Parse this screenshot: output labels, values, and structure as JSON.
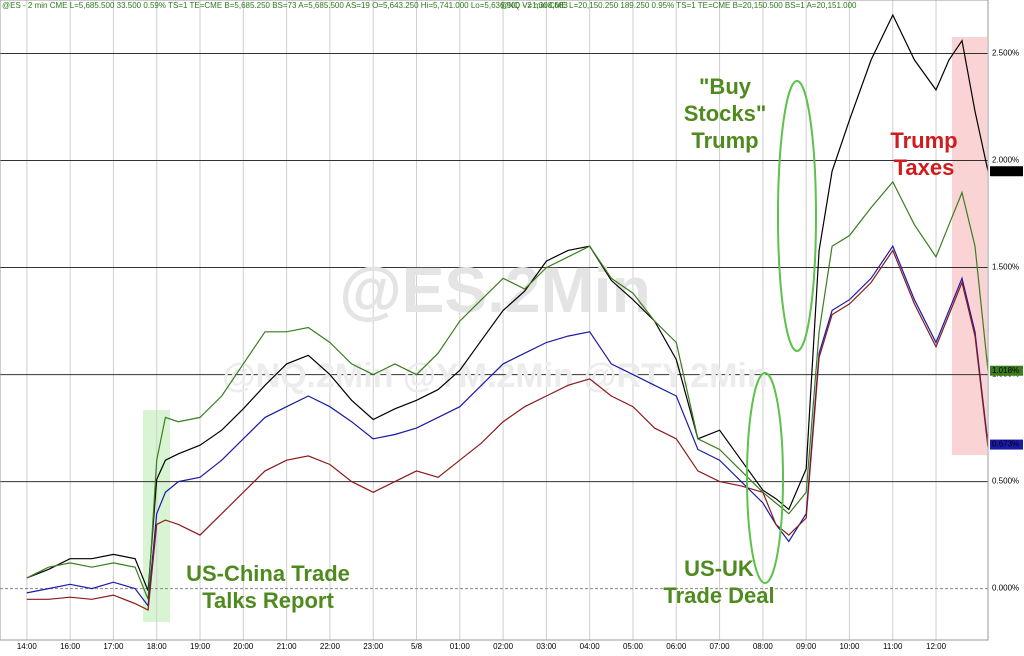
{
  "chart_data": {
    "type": "line",
    "header": [
      "@ES - 2 min CME  L=5,685.500  33.500  0.59%  TS=1  TE=CME  B=5,685.250  BS=73  A=5,685.500  AS=19  O=5,643.250  Hi=5,741.000  Lo=5,636.500  V=1,308,083",
      "@NQ - 2 min CME  L=20,150.250  189.250  0.95%  TS=1  TE=CME  B=20,150.500  BS=1  A=20,151.000"
    ],
    "watermark": "@ES.2Min",
    "watermark_sub": "@NQ.2Min @YM.2Min @RTY.2Min",
    "annotations": [
      {
        "lines": [
          "US-China Trade",
          "Talks Report"
        ],
        "color": "#4f8a1e"
      },
      {
        "lines": [
          "\"Buy",
          "Stocks\"",
          "Trump"
        ],
        "color": "#4f8a1e"
      },
      {
        "lines": [
          "US-UK",
          "Trade Deal"
        ],
        "color": "#4f8a1e"
      },
      {
        "lines": [
          "Trump",
          "Taxes"
        ],
        "color": "#d01c1c"
      }
    ],
    "x": [
      0,
      0.5,
      1,
      1.5,
      2,
      2.5,
      2.8,
      3,
      3.2,
      3.5,
      4,
      4.5,
      5,
      5.5,
      6,
      6.5,
      7,
      7.5,
      8,
      8.5,
      9,
      9.5,
      10,
      10.5,
      11,
      11.5,
      12,
      12.5,
      13,
      13.5,
      14,
      14.5,
      15,
      15.5,
      16,
      16.5,
      17,
      17.3,
      17.6,
      18,
      18.3,
      18.6,
      19,
      19.5,
      20,
      20.5,
      21,
      21.3,
      21.6,
      21.9,
      22.2
    ],
    "series": [
      {
        "name": "@ES.2Min",
        "color": "#000000",
        "last_label": "1.950%",
        "values": [
          0.05,
          0.09,
          0.14,
          0.14,
          0.16,
          0.14,
          -0.01,
          0.51,
          0.6,
          0.63,
          0.67,
          0.74,
          0.84,
          0.95,
          1.05,
          1.09,
          1.0,
          0.88,
          0.79,
          0.84,
          0.88,
          0.93,
          1.02,
          1.16,
          1.3,
          1.39,
          1.53,
          1.58,
          1.6,
          1.44,
          1.35,
          1.25,
          1.07,
          0.7,
          0.74,
          0.6,
          0.46,
          0.42,
          0.37,
          0.56,
          1.58,
          1.95,
          2.19,
          2.47,
          2.68,
          2.47,
          2.33,
          2.47,
          2.56,
          2.23,
          1.95
        ]
      },
      {
        "name": "@NQ.2Min",
        "color": "#3a7d1e",
        "last_label": "1.018%",
        "values": [
          0.05,
          0.1,
          0.12,
          0.1,
          0.12,
          0.1,
          -0.05,
          0.6,
          0.8,
          0.78,
          0.8,
          0.9,
          1.05,
          1.2,
          1.2,
          1.22,
          1.15,
          1.05,
          1.0,
          1.05,
          1.0,
          1.1,
          1.25,
          1.35,
          1.45,
          1.4,
          1.5,
          1.55,
          1.6,
          1.45,
          1.38,
          1.25,
          1.15,
          0.7,
          0.65,
          0.55,
          0.45,
          0.4,
          0.35,
          0.45,
          1.2,
          1.6,
          1.65,
          1.78,
          1.9,
          1.7,
          1.55,
          1.7,
          1.85,
          1.6,
          1.018
        ]
      },
      {
        "name": "@YM.2Min",
        "color": "#1a1aa8",
        "last_label": "0.673%",
        "values": [
          -0.02,
          0.0,
          0.02,
          0.0,
          0.03,
          0.0,
          -0.08,
          0.35,
          0.45,
          0.5,
          0.52,
          0.6,
          0.7,
          0.8,
          0.85,
          0.9,
          0.85,
          0.78,
          0.7,
          0.72,
          0.75,
          0.8,
          0.85,
          0.95,
          1.05,
          1.1,
          1.15,
          1.18,
          1.2,
          1.05,
          1.0,
          0.95,
          0.9,
          0.65,
          0.6,
          0.5,
          0.4,
          0.3,
          0.22,
          0.35,
          1.1,
          1.3,
          1.35,
          1.45,
          1.6,
          1.35,
          1.15,
          1.3,
          1.45,
          1.2,
          0.673
        ]
      },
      {
        "name": "@RTY.2Min",
        "color": "#8b1a1a",
        "values": [
          -0.05,
          -0.05,
          -0.04,
          -0.05,
          -0.03,
          -0.07,
          -0.1,
          0.3,
          0.32,
          0.3,
          0.25,
          0.35,
          0.45,
          0.55,
          0.6,
          0.62,
          0.58,
          0.5,
          0.45,
          0.5,
          0.55,
          0.52,
          0.6,
          0.68,
          0.78,
          0.85,
          0.9,
          0.95,
          0.98,
          0.9,
          0.85,
          0.75,
          0.7,
          0.55,
          0.5,
          0.48,
          0.45,
          0.3,
          0.25,
          0.33,
          1.08,
          1.28,
          1.33,
          1.43,
          1.58,
          1.33,
          1.13,
          1.28,
          1.43,
          1.18,
          0.66
        ]
      }
    ],
    "xlim": [
      -0.62,
      22.2
    ],
    "ylim": [
      -0.24,
      2.75
    ],
    "xticks": [
      {
        "value": 0,
        "label": "14:00"
      },
      {
        "value": 1,
        "label": "16:00"
      },
      {
        "value": 2,
        "label": "17:00"
      },
      {
        "value": 3,
        "label": "18:00"
      },
      {
        "value": 4,
        "label": "19:00"
      },
      {
        "value": 5,
        "label": "20:00"
      },
      {
        "value": 6,
        "label": "21:00"
      },
      {
        "value": 7,
        "label": "22:00"
      },
      {
        "value": 8,
        "label": "23:00"
      },
      {
        "value": 9,
        "label": "5/8"
      },
      {
        "value": 10,
        "label": "01:00"
      },
      {
        "value": 11,
        "label": "02:00"
      },
      {
        "value": 12,
        "label": "03:00"
      },
      {
        "value": 13,
        "label": "04:00"
      },
      {
        "value": 14,
        "label": "05:00"
      },
      {
        "value": 15,
        "label": "06:00"
      },
      {
        "value": 16,
        "label": "07:00"
      },
      {
        "value": 17,
        "label": "08:00"
      },
      {
        "value": 18,
        "label": "09:00"
      },
      {
        "value": 19,
        "label": "10:00"
      },
      {
        "value": 20,
        "label": "11:00"
      },
      {
        "value": 21,
        "label": "12:00"
      }
    ],
    "yticks": [
      {
        "value": 0,
        "label": "0.000%"
      },
      {
        "value": 0.5,
        "label": "0.500%"
      },
      {
        "value": 1,
        "label": "1.000%"
      },
      {
        "value": 1.5,
        "label": "1.500%"
      },
      {
        "value": 2,
        "label": "2.000%"
      },
      {
        "value": 2.5,
        "label": "2.500%"
      }
    ],
    "grid": true
  }
}
